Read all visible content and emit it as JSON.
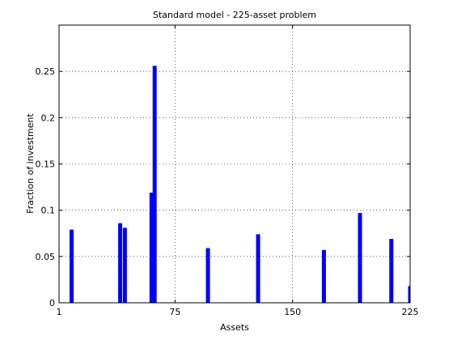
{
  "chart_data": {
    "type": "bar",
    "title": "Standard model - 225-asset problem",
    "xlabel": "Assets",
    "ylabel": "Fraction of investment",
    "xlim": [
      1,
      225
    ],
    "ylim": [
      0,
      0.3
    ],
    "xticks": [
      1,
      75,
      150,
      225
    ],
    "yticks": [
      0,
      0.05,
      0.1,
      0.15,
      0.2,
      0.25
    ],
    "grid": true,
    "bar_color": "#0000ff",
    "bars": [
      {
        "asset": 9,
        "value": 0.079
      },
      {
        "asset": 40,
        "value": 0.086
      },
      {
        "asset": 43,
        "value": 0.081
      },
      {
        "asset": 60,
        "value": 0.119
      },
      {
        "asset": 62,
        "value": 0.256
      },
      {
        "asset": 96,
        "value": 0.059
      },
      {
        "asset": 128,
        "value": 0.074
      },
      {
        "asset": 170,
        "value": 0.057
      },
      {
        "asset": 193,
        "value": 0.097
      },
      {
        "asset": 213,
        "value": 0.069
      },
      {
        "asset": 225,
        "value": 0.018
      }
    ]
  }
}
